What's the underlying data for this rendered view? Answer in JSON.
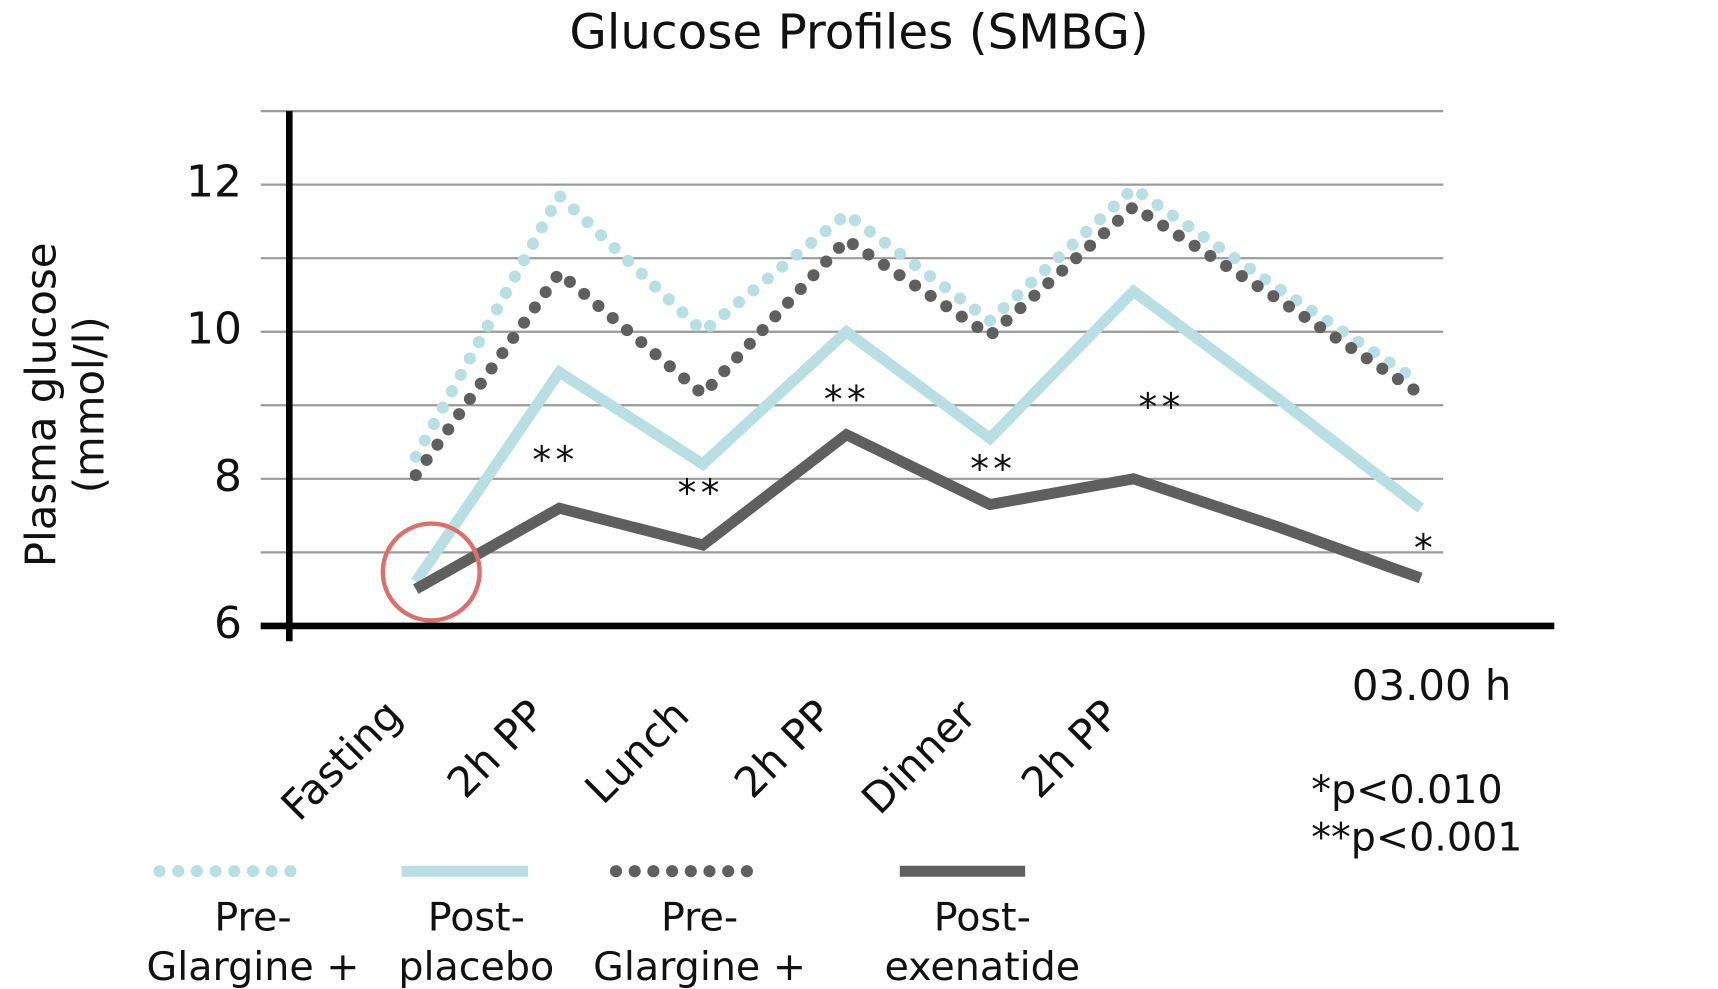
{
  "chart_data": {
    "type": "line",
    "title": "Glucose Profiles (SMBG)",
    "y_label": "Plasma glucose\n(mmol/l)",
    "categories": [
      "Fasting",
      "2h PP",
      "Lunch",
      "2h PP",
      "Dinner",
      "2h PP",
      null,
      "03.00 h"
    ],
    "series": [
      {
        "name": "Pre-\nGlargine +",
        "color": "#b9dfe2",
        "style": "dotted",
        "values": [
          8.3,
          11.85,
          10.0,
          11.6,
          10.15,
          11.95,
          10.6,
          9.3
        ]
      },
      {
        "name": "Post-\nplacebo",
        "color": "#b9dfe2",
        "style": "solid",
        "values": [
          6.6,
          9.45,
          8.2,
          10.0,
          8.55,
          10.55,
          9.1,
          7.6
        ]
      },
      {
        "name": "Pre-\nGlargine +",
        "color": "#5f5f5f",
        "style": "dotted",
        "values": [
          8.05,
          10.8,
          9.15,
          11.25,
          9.95,
          11.7,
          10.45,
          9.15
        ]
      },
      {
        "name": "Post-\nexenatide",
        "color": "#5f5f5f",
        "style": "solid",
        "values": [
          6.5,
          7.6,
          7.1,
          8.6,
          7.65,
          8.0,
          7.35,
          6.65
        ]
      }
    ],
    "ylim": [
      6,
      13
    ],
    "yticks": [
      6,
      8,
      10,
      12
    ],
    "minor_yticks": [
      7,
      9,
      11,
      13
    ],
    "grid": true,
    "annotations": [
      "**",
      "**",
      "**",
      "**",
      "**",
      "*"
    ],
    "footnote": "*p<0.010 **p<0.001"
  }
}
